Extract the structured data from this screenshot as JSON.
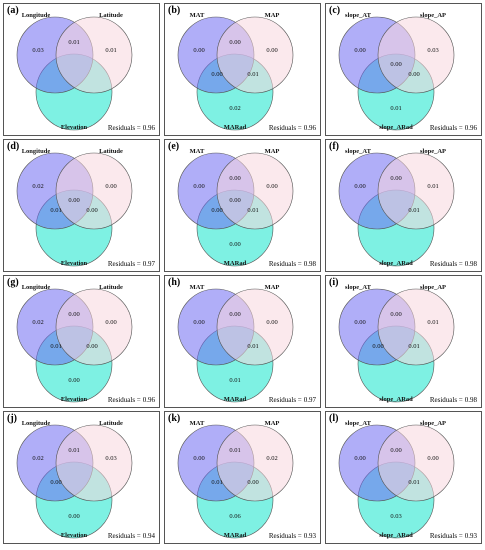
{
  "colors": {
    "set_a": "#6f6cf2",
    "set_b": "#f7d7df",
    "set_c": "#14e6cc",
    "outline": "#555555"
  },
  "residuals_label": "Residuals =",
  "panels": [
    {
      "label": "(a)",
      "names": [
        "Longitude",
        "Latitude",
        "Elevation"
      ],
      "values": {
        "a": "0.03",
        "b": "0.01",
        "ab": "0.01",
        "c": "",
        "ac": "",
        "bc": "",
        "abc": ""
      },
      "residual": "0.96"
    },
    {
      "label": "(b)",
      "names": [
        "MAT",
        "MAP",
        "MARad"
      ],
      "values": {
        "a": "0.00",
        "b": "0.00",
        "ab": "0.00",
        "c": "0.02",
        "ac": "0.00",
        "bc": "0.01",
        "abc": ""
      },
      "residual": "0.96"
    },
    {
      "label": "(c)",
      "names": [
        "slope_AT",
        "slope_AP",
        "slope_ARad"
      ],
      "values": {
        "a": "0.00",
        "b": "0.03",
        "ab": "",
        "c": "0.01",
        "ac": "",
        "bc": "0.00",
        "abc": "0.00"
      },
      "residual": "0.96"
    },
    {
      "label": "(d)",
      "names": [
        "Longitude",
        "Latitude",
        "Elevation"
      ],
      "values": {
        "a": "0.02",
        "b": "0.00",
        "ab": "",
        "c": "",
        "ac": "0.01",
        "bc": "0.00",
        "abc": "0.00"
      },
      "residual": "0.97"
    },
    {
      "label": "(e)",
      "names": [
        "MAT",
        "MAP",
        "MARad"
      ],
      "values": {
        "a": "0.00",
        "b": "0.00",
        "ab": "0.00",
        "c": "0.00",
        "ac": "0.00",
        "bc": "0.01",
        "abc": "0.00"
      },
      "residual": "0.98"
    },
    {
      "label": "(f)",
      "names": [
        "slope_AT",
        "slope_AP",
        "slope_ARad"
      ],
      "values": {
        "a": "0.00",
        "b": "0.01",
        "ab": "0.00",
        "c": "",
        "ac": "",
        "bc": "0.01",
        "abc": ""
      },
      "residual": "0.98"
    },
    {
      "label": "(g)",
      "names": [
        "Longitude",
        "Latitude",
        "Elevation"
      ],
      "values": {
        "a": "0.02",
        "b": "0.00",
        "ab": "0.00",
        "c": "0.00",
        "ac": "0.01",
        "bc": "0.00",
        "abc": ""
      },
      "residual": "0.96"
    },
    {
      "label": "(h)",
      "names": [
        "MAT",
        "MAP",
        "MARad"
      ],
      "values": {
        "a": "0.00",
        "b": "0.00",
        "ab": "0.00",
        "c": "0.01",
        "ac": "",
        "bc": "0.01",
        "abc": ""
      },
      "residual": "0.97"
    },
    {
      "label": "(i)",
      "names": [
        "slope_AT",
        "slope_AP",
        "slope_ARad"
      ],
      "values": {
        "a": "0.00",
        "b": "0.01",
        "ab": "0.00",
        "c": "",
        "ac": "0.00",
        "bc": "0.01",
        "abc": ""
      },
      "residual": "0.98"
    },
    {
      "label": "(j)",
      "names": [
        "Longitude",
        "Latitude",
        "Elevation"
      ],
      "values": {
        "a": "0.02",
        "b": "0.03",
        "ab": "0.01",
        "c": "0.00",
        "ac": "0.00",
        "bc": "",
        "abc": ""
      },
      "residual": "0.94"
    },
    {
      "label": "(k)",
      "names": [
        "MAT",
        "MAP",
        "MARad"
      ],
      "values": {
        "a": "0.00",
        "b": "0.02",
        "ab": "0.01",
        "c": "0.06",
        "ac": "0.01",
        "bc": "0.00",
        "abc": ""
      },
      "residual": "0.93"
    },
    {
      "label": "(l)",
      "names": [
        "slope_AT",
        "slope_AP",
        "slope_ARad"
      ],
      "values": {
        "a": "0.00",
        "b": "0.00",
        "ab": "0.00",
        "c": "0.03",
        "ac": "",
        "bc": "0.01",
        "abc": ""
      },
      "residual": "0.93"
    }
  ]
}
